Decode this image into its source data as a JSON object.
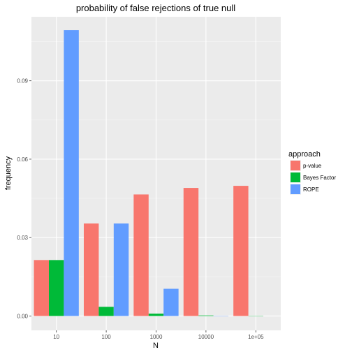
{
  "chart_data": {
    "type": "bar",
    "title": "probability of false rejections of true null",
    "xlabel": "N",
    "ylabel": "frequency",
    "categories": [
      "10",
      "100",
      "1000",
      "10000",
      "1e+05"
    ],
    "yticks": [
      "0.00",
      "0.03",
      "0.06",
      "0.09"
    ],
    "ylim": [
      -0.0055,
      0.1145
    ],
    "legend": {
      "title": "approach",
      "placement": "right"
    },
    "series": [
      {
        "name": "p-value",
        "color": "#F8766D",
        "values": [
          0.0214,
          0.0354,
          0.0465,
          0.049,
          0.0498
        ]
      },
      {
        "name": "Bayes Factor",
        "color": "#00BA38",
        "values": [
          0.0214,
          0.0035,
          0.0009,
          0.0002,
          0.0001
        ]
      },
      {
        "name": "ROPE",
        "color": "#619CFF",
        "values": [
          0.1094,
          0.0354,
          0.0104,
          0.0001,
          0.0
        ]
      }
    ],
    "grid": true
  }
}
